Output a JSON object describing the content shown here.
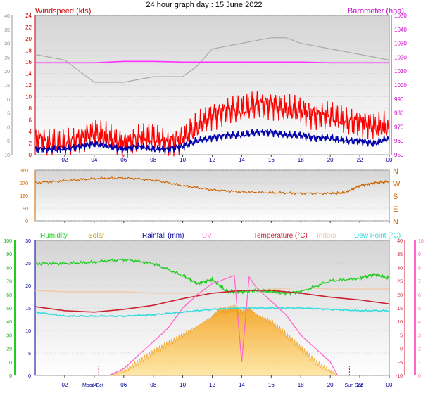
{
  "title": "24 hour graph day : 15 June 2022",
  "colors": {
    "wind": "#ff0000",
    "gust_avg": "#0000aa",
    "baro": "#ff33ff",
    "baro_gray": "#aaaaaa",
    "dir": "#cc6600",
    "humidity": "#22cc22",
    "solar": "#f5b030",
    "rain": "#000099",
    "uv": "#ff66cc",
    "temp": "#cc2233",
    "indoor": "#f2c8a8",
    "dew": "#33dddd",
    "plot_bg_top": "#dcdcdc",
    "plot_bg_bottom": "#ffffff"
  },
  "x_ticks": [
    "02",
    "04",
    "06",
    "08",
    "10",
    "12",
    "14",
    "16",
    "18",
    "20",
    "22",
    "00"
  ],
  "chart_data": [
    {
      "type": "line",
      "left_title": "Windspeed (kts)",
      "right_title": "Barometer (hpa)",
      "far_left_ticks": [
        "40",
        "35",
        "30",
        "25",
        "20",
        "15",
        "10",
        "5",
        "0",
        "-5",
        "-10"
      ],
      "wind_ticks": [
        "24",
        "22",
        "20",
        "18",
        "16",
        "14",
        "12",
        "10",
        "8",
        "6",
        "4",
        "2",
        "0"
      ],
      "baro_ticks": [
        "1050",
        "1040",
        "1030",
        "1020",
        "1010",
        "1000",
        "990",
        "980",
        "970",
        "960",
        "950"
      ],
      "ylim_wind": [
        0,
        25
      ],
      "ylim_baro": [
        950,
        1050
      ],
      "series": [
        {
          "key": "wind",
          "x": [
            0,
            1,
            2,
            3,
            4,
            5,
            6,
            7,
            8,
            9,
            10,
            11,
            12,
            13,
            14,
            15,
            16,
            17,
            18,
            19,
            20,
            21,
            22,
            23,
            24
          ],
          "y": [
            3,
            2,
            2,
            3,
            4,
            3,
            2,
            3,
            3,
            2,
            3,
            5,
            7,
            8,
            8,
            9,
            9,
            8,
            8,
            7,
            7,
            6,
            6,
            5,
            5
          ]
        },
        {
          "key": "gust_avg",
          "x": [
            0,
            1,
            2,
            3,
            4,
            5,
            6,
            7,
            8,
            9,
            10,
            11,
            12,
            13,
            14,
            15,
            16,
            17,
            18,
            19,
            20,
            21,
            22,
            23,
            24
          ],
          "y": [
            1,
            1,
            1,
            1.5,
            2,
            1.5,
            1,
            1.5,
            1,
            1,
            1.5,
            2.5,
            3,
            3.5,
            3.5,
            4,
            4,
            3.5,
            3.5,
            3,
            3,
            2.5,
            2.5,
            2,
            3
          ]
        },
        {
          "key": "baro",
          "x": [
            0,
            2,
            4,
            6,
            8,
            10,
            12,
            14,
            16,
            18,
            20,
            22,
            24
          ],
          "y": [
            1016,
            1016,
            1016,
            1017,
            1017,
            1016.5,
            1016.5,
            1016.5,
            1016.5,
            1016.5,
            1016,
            1016,
            1016
          ]
        },
        {
          "key": "baro_gray",
          "x": [
            0,
            2,
            3,
            4,
            6,
            8,
            10,
            11,
            12,
            14,
            16,
            17,
            18,
            20,
            22,
            24
          ],
          "y": [
            18,
            17,
            15,
            13,
            13,
            14,
            14,
            16,
            19,
            20,
            21,
            21,
            20,
            19,
            18,
            17
          ]
        }
      ]
    },
    {
      "type": "line",
      "left_ticks": [
        "360",
        "270",
        "180",
        "90",
        "0"
      ],
      "compass_ticks": [
        "N",
        "W",
        "S",
        "E",
        "N"
      ],
      "ylim": [
        0,
        360
      ],
      "series": [
        {
          "key": "dir",
          "x": [
            0,
            2,
            4,
            6,
            8,
            10,
            12,
            14,
            16,
            18,
            20,
            21,
            22,
            23,
            24
          ],
          "y": [
            270,
            285,
            300,
            305,
            290,
            250,
            220,
            205,
            200,
            195,
            195,
            200,
            250,
            270,
            280
          ]
        }
      ]
    },
    {
      "type": "line",
      "legend": [
        "Humidity",
        "Solar",
        "Rainfall (mm)",
        "UV",
        "Temperature (°C)",
        "Indoor",
        "Dew Point (°C)"
      ],
      "humidity_ticks": [
        "100",
        "90",
        "80",
        "70",
        "60",
        "50",
        "40",
        "30",
        "20",
        "10",
        "0"
      ],
      "solar_ticks": [
        "30",
        "25",
        "20",
        "15",
        "10",
        "5",
        "0"
      ],
      "temp_ticks": [
        "40",
        "35",
        "30",
        "25",
        "20",
        "15",
        "10",
        "5",
        "0",
        "-5",
        "-10"
      ],
      "uv_ticks": [
        "10",
        "9",
        "8",
        "7",
        "6",
        "5",
        "4",
        "3",
        "2",
        "1",
        "0"
      ],
      "markers": [
        "Moon Set",
        "Sun Set"
      ],
      "ylim_temp": [
        -10,
        40
      ],
      "ylim_humidity": [
        0,
        100
      ],
      "series": [
        {
          "key": "humidity",
          "x": [
            0,
            2,
            4,
            6,
            8,
            10,
            11,
            12,
            13,
            14,
            15,
            16,
            17,
            18,
            20,
            22,
            23,
            24
          ],
          "y": [
            83,
            83,
            84,
            86,
            83,
            74,
            68,
            71,
            62,
            62,
            63,
            62,
            61,
            62,
            70,
            72,
            75,
            72
          ]
        },
        {
          "key": "temp",
          "x": [
            0,
            2,
            4,
            6,
            8,
            10,
            12,
            14,
            16,
            18,
            20,
            22,
            24
          ],
          "y": [
            15.5,
            14,
            13.5,
            14.5,
            16,
            18.5,
            20.5,
            21.5,
            21.5,
            20.5,
            19,
            18,
            16.5
          ]
        },
        {
          "key": "indoor",
          "x": [
            0,
            2,
            4,
            6,
            8,
            10,
            12,
            14,
            16,
            18,
            20,
            22,
            24
          ],
          "y": [
            21.5,
            21,
            21,
            21,
            20.5,
            20.5,
            20.5,
            21,
            22,
            22.5,
            22,
            22,
            22
          ]
        },
        {
          "key": "dew",
          "x": [
            0,
            2,
            4,
            6,
            8,
            10,
            12,
            14,
            16,
            18,
            20,
            22,
            24
          ],
          "y": [
            13.5,
            12,
            12,
            12,
            12.5,
            13.5,
            14.5,
            15,
            15,
            15,
            14.5,
            14,
            14
          ]
        },
        {
          "key": "solar",
          "x": [
            5,
            6,
            7,
            8,
            9,
            10,
            11,
            12,
            12.5,
            13,
            13.5,
            14,
            14.5,
            15,
            16,
            17,
            18,
            19,
            20,
            20.5
          ],
          "y": [
            0,
            1,
            3,
            5,
            7,
            9,
            11,
            13,
            14.5,
            14.5,
            15,
            14,
            15,
            13.5,
            12,
            9,
            6,
            3,
            1,
            0
          ]
        },
        {
          "key": "uv",
          "x": [
            5,
            6,
            7,
            8,
            9,
            10,
            11,
            12,
            13,
            13.5,
            14,
            14.5,
            15,
            16,
            17,
            18,
            19,
            20,
            20.5
          ],
          "y": [
            0,
            0.5,
            1.5,
            2.5,
            3.5,
            5,
            6,
            6.8,
            7.2,
            7.4,
            1,
            7.3,
            6.5,
            5.5,
            4.5,
            3,
            2,
            1,
            0
          ]
        }
      ]
    }
  ]
}
